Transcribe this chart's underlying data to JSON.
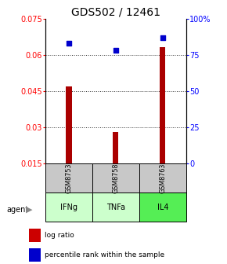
{
  "title": "GDS502 / 12461",
  "samples": [
    "GSM8753",
    "GSM8758",
    "GSM8763"
  ],
  "agents": [
    "IFNg",
    "TNFa",
    "IL4"
  ],
  "log_ratios": [
    0.047,
    0.028,
    0.063
  ],
  "percentile_ranks": [
    83,
    78,
    87
  ],
  "left_ylim": [
    0.015,
    0.075
  ],
  "left_yticks": [
    0.015,
    0.03,
    0.045,
    0.06,
    0.075
  ],
  "right_ylim": [
    0,
    100
  ],
  "right_yticks": [
    0,
    25,
    50,
    75,
    100
  ],
  "right_yticklabels": [
    "0",
    "25",
    "50",
    "75",
    "100%"
  ],
  "bar_color": "#aa0000",
  "dot_color": "#0000cc",
  "agent_colors": [
    "#ccffcc",
    "#ccffcc",
    "#55ee55"
  ],
  "sample_bg": "#c8c8c8",
  "title_fontsize": 10,
  "tick_fontsize": 7,
  "bar_width": 0.12
}
